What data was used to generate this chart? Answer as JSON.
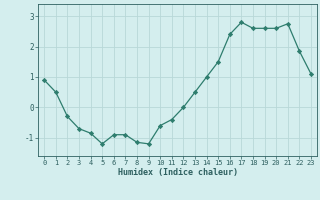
{
  "x": [
    0,
    1,
    2,
    3,
    4,
    5,
    6,
    7,
    8,
    9,
    10,
    11,
    12,
    13,
    14,
    15,
    16,
    17,
    18,
    19,
    20,
    21,
    22,
    23
  ],
  "y": [
    0.9,
    0.5,
    -0.3,
    -0.7,
    -0.85,
    -1.2,
    -0.9,
    -0.9,
    -1.15,
    -1.2,
    -0.6,
    -0.4,
    0.0,
    0.5,
    1.0,
    1.5,
    2.4,
    2.8,
    2.6,
    2.6,
    2.6,
    2.75,
    1.85,
    1.1
  ],
  "line_color": "#2e7d6e",
  "marker": "D",
  "marker_size": 2.2,
  "bg_color": "#d4eeee",
  "grid_color": "#b8d8d8",
  "xlabel": "Humidex (Indice chaleur)",
  "xlim": [
    -0.5,
    23.5
  ],
  "ylim": [
    -1.6,
    3.4
  ],
  "yticks": [
    -1,
    0,
    1,
    2,
    3
  ],
  "xticks": [
    0,
    1,
    2,
    3,
    4,
    5,
    6,
    7,
    8,
    9,
    10,
    11,
    12,
    13,
    14,
    15,
    16,
    17,
    18,
    19,
    20,
    21,
    22,
    23
  ],
  "font_color": "#2e6060",
  "tick_fontsize": 5.0,
  "xlabel_fontsize": 6.0
}
